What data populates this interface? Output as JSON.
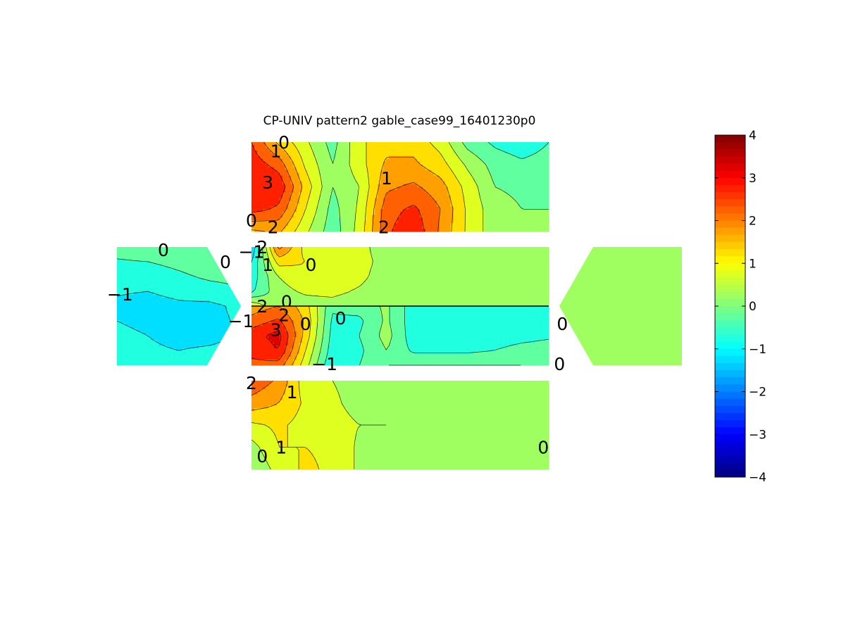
{
  "chart_data": {
    "type": "heatmap",
    "title": "CP-UNIV pattern2 gable_case99_16401230p0",
    "colormap": "jet",
    "colorbar": {
      "range": [
        -4,
        4
      ],
      "ticks": [
        "4",
        "3",
        "2",
        "1",
        "0",
        "−1",
        "−2",
        "−3",
        "−4"
      ],
      "position": "right"
    },
    "panels": [
      {
        "id": "top-face",
        "shape": "rect",
        "grid": [
          [
            2.5,
            1.4,
            0.6,
            -0.2,
            0.9,
            1.3,
            1.3,
            0.8,
            -0.2,
            -0.6,
            -0.8,
            -0.5
          ],
          [
            2.8,
            2.3,
            0.9,
            0.0,
            0.8,
            1.6,
            1.6,
            1.2,
            0.4,
            -0.2,
            -0.4,
            -0.3
          ],
          [
            3.0,
            2.9,
            1.3,
            0.0,
            0.5,
            1.9,
            2.1,
            1.7,
            0.8,
            0.0,
            -0.1,
            -0.1
          ],
          [
            2.7,
            2.4,
            1.0,
            -0.2,
            0.6,
            2.3,
            2.6,
            2.0,
            0.9,
            0.2,
            0.0,
            0.0
          ],
          [
            1.4,
            1.6,
            0.6,
            -0.3,
            0.7,
            2.4,
            2.9,
            1.9,
            0.9,
            0.2,
            0.0,
            0.0
          ]
        ],
        "labels": [
          {
            "text": "1",
            "row": 0.4,
            "col": 0.9
          },
          {
            "text": "0",
            "row": 0.0,
            "col": 1.2
          },
          {
            "text": "3",
            "row": 1.8,
            "col": 0.6
          },
          {
            "text": "1",
            "row": 1.6,
            "col": 5.0
          },
          {
            "text": "0",
            "row": 3.5,
            "col": 0.0
          },
          {
            "text": "2",
            "row": 3.8,
            "col": 0.8
          },
          {
            "text": "2",
            "row": 3.8,
            "col": 4.9
          }
        ]
      },
      {
        "id": "roof-upper",
        "shape": "rect",
        "grid": [
          [
            -1.5,
            2.2,
            0.8,
            0.8,
            0.8,
            0.0,
            0.0,
            0.0,
            0.0,
            0.0,
            0.0,
            0.0
          ],
          [
            -1.0,
            1.2,
            1.0,
            0.9,
            0.8,
            0.2,
            0.0,
            0.0,
            0.0,
            0.0,
            0.0,
            0.0
          ],
          [
            -0.8,
            0.5,
            0.9,
            0.9,
            0.7,
            0.1,
            0.0,
            0.0,
            0.0,
            0.0,
            0.0,
            0.0
          ],
          [
            -0.6,
            0.3,
            0.6,
            0.7,
            0.4,
            0.0,
            0.0,
            0.0,
            0.0,
            0.0,
            0.0,
            0.0
          ],
          [
            0.9,
            0.1,
            0.2,
            0.2,
            0.0,
            0.0,
            0.0,
            0.0,
            0.0,
            0.0,
            0.0,
            0.0
          ]
        ],
        "labels": [
          {
            "text": "−1",
            "row": 0.3,
            "col": 0.0
          },
          {
            "text": "2",
            "row": 0.0,
            "col": 0.4
          },
          {
            "text": "1",
            "row": 1.2,
            "col": 0.6
          },
          {
            "text": "0",
            "row": 1.2,
            "col": 2.2
          },
          {
            "text": "0",
            "row": 3.7,
            "col": 1.3
          }
        ]
      },
      {
        "id": "roof-lower",
        "shape": "rect",
        "grid": [
          [
            1.7,
            2.0,
            1.2,
            -0.4,
            -0.3,
            0.1,
            -0.8,
            -0.8,
            -0.8,
            -0.8,
            -0.8,
            -0.7
          ],
          [
            2.2,
            2.6,
            1.4,
            -0.6,
            -0.6,
            0.1,
            -0.8,
            -0.8,
            -0.8,
            -0.8,
            -0.8,
            -0.7
          ],
          [
            2.8,
            3.2,
            1.3,
            -0.7,
            -0.5,
            0.2,
            -0.8,
            -0.9,
            -0.9,
            -0.8,
            -0.7,
            -0.6
          ],
          [
            2.6,
            3.0,
            1.0,
            -0.8,
            -0.6,
            0.0,
            -0.6,
            -0.6,
            -0.6,
            -0.5,
            -0.3,
            -0.2
          ],
          [
            2.4,
            2.3,
            0.7,
            -1.0,
            -0.5,
            0.0,
            0.0,
            0.0,
            0.0,
            0.0,
            0.0,
            -0.1
          ]
        ],
        "labels": [
          {
            "text": "2",
            "row": 0.0,
            "col": 0.4
          },
          {
            "text": "2",
            "row": 0.6,
            "col": 1.2
          },
          {
            "text": "3",
            "row": 1.6,
            "col": 0.9
          },
          {
            "text": "0",
            "row": 1.2,
            "col": 2.0
          },
          {
            "text": "0",
            "row": 0.8,
            "col": 3.3
          },
          {
            "text": "−1",
            "row": 3.9,
            "col": 2.7
          },
          {
            "text": "0",
            "row": 3.9,
            "col": 11.4
          }
        ]
      },
      {
        "id": "bottom-face",
        "shape": "rect",
        "grid": [
          [
            2.4,
            1.9,
            0.7,
            0.5,
            0.3,
            0.1,
            0.1,
            0.0,
            0.0,
            0.0,
            0.0,
            0.0
          ],
          [
            1.8,
            1.5,
            0.9,
            0.6,
            0.3,
            0.3,
            0.1,
            0.0,
            0.0,
            0.0,
            0.0,
            0.2
          ],
          [
            0.9,
            1.1,
            0.8,
            0.7,
            0.5,
            0.5,
            0.3,
            0.0,
            0.0,
            0.0,
            0.2,
            0.3
          ],
          [
            0.3,
            1.0,
            1.0,
            0.9,
            0.4,
            0.2,
            0.1,
            0.1,
            0.0,
            0.0,
            0.2,
            0.3
          ],
          [
            0.0,
            0.7,
            1.1,
            0.9,
            0.4,
            0.2,
            0.1,
            0.0,
            0.0,
            0.0,
            0.2,
            0.3
          ]
        ],
        "labels": [
          {
            "text": "2",
            "row": 0.1,
            "col": 0.0
          },
          {
            "text": "1",
            "row": 0.5,
            "col": 1.5
          },
          {
            "text": "0",
            "row": 3.4,
            "col": 0.4
          },
          {
            "text": "1",
            "row": 3.0,
            "col": 1.1
          },
          {
            "text": "0",
            "row": 3.0,
            "col": 10.8
          }
        ]
      },
      {
        "id": "gable-left",
        "shape": "gable-left",
        "grid": [
          [
            -0.3,
            -0.2,
            -0.1,
            0.0,
            0.0
          ],
          [
            -0.8,
            -0.8,
            -0.6,
            -0.4,
            -0.3
          ],
          [
            -1.1,
            -1.2,
            -1.1,
            -1.1,
            -0.9
          ],
          [
            -0.9,
            -1.0,
            -1.1,
            -1.1,
            -1.0
          ],
          [
            -0.8,
            -0.9,
            -0.9,
            -0.8,
            -0.7
          ]
        ],
        "labels": [
          {
            "text": "0",
            "row": 0.1,
            "col": 1.5
          },
          {
            "text": "0",
            "row": 0.5,
            "col": 3.5
          },
          {
            "text": "−1",
            "row": 1.6,
            "col": 0.1
          },
          {
            "text": "−1",
            "row": 2.5,
            "col": 4.0
          }
        ]
      },
      {
        "id": "gable-right",
        "shape": "gable-right",
        "grid": [
          [
            0.2,
            0.2,
            0.2,
            0.2,
            0.2
          ],
          [
            0.2,
            0.2,
            0.2,
            0.2,
            0.1
          ],
          [
            0.1,
            0.1,
            0.1,
            0.2,
            0.1
          ],
          [
            0.2,
            0.3,
            0.4,
            0.3,
            0.3
          ],
          [
            0.3,
            0.3,
            0.3,
            0.3,
            0.3
          ]
        ],
        "labels": [
          {
            "text": "0",
            "row": 2.6,
            "col": 0.1
          }
        ]
      }
    ]
  }
}
